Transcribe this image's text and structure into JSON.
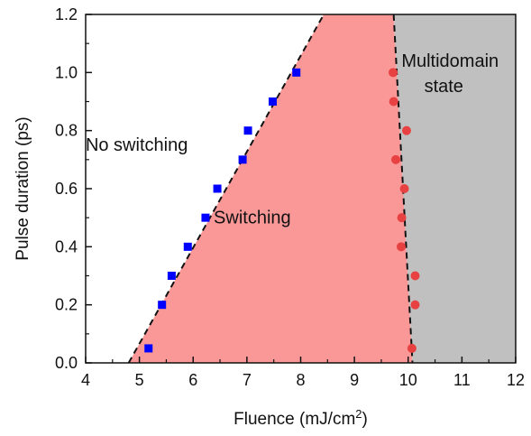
{
  "chart_data": {
    "type": "scatter",
    "title": "",
    "xlabel": "Fluence (mJ/cm",
    "xlabel_sup": "2",
    "xlabel_close": ")",
    "ylabel": "Pulse duration (ps)",
    "xlim": [
      4,
      12
    ],
    "ylim": [
      0,
      1.2
    ],
    "x_ticks": [
      4,
      5,
      6,
      7,
      8,
      9,
      10,
      11,
      12
    ],
    "y_ticks": [
      0.0,
      0.2,
      0.4,
      0.6,
      0.8,
      1.0,
      1.2
    ],
    "x_tick_labels": [
      "4",
      "5",
      "6",
      "7",
      "8",
      "9",
      "10",
      "11",
      "12"
    ],
    "y_tick_labels": [
      "0.0",
      "0.2",
      "0.4",
      "0.6",
      "0.8",
      "1.0",
      "1.2"
    ],
    "grid": false,
    "legend": "none",
    "regions": [
      {
        "label": "No switching",
        "color": "#ffffff",
        "label_at": {
          "x": 4.95,
          "y": 0.73
        }
      },
      {
        "label": "Switching",
        "color": "#fa9898",
        "label_at": {
          "x": 7.1,
          "y": 0.48
        }
      },
      {
        "label": "Multidomain",
        "label2": "state",
        "color": "#c0c0c0",
        "label_at": {
          "x": 10.78,
          "y": 1.02
        }
      }
    ],
    "boundaries": [
      {
        "name": "left",
        "style": "dashed",
        "color": "#111111",
        "points": [
          [
            4.8,
            0.0
          ],
          [
            8.43,
            1.2
          ]
        ]
      },
      {
        "name": "right",
        "style": "dashed",
        "color": "#111111",
        "points": [
          [
            9.73,
            1.2
          ],
          [
            10.08,
            0.0
          ]
        ]
      }
    ],
    "series": [
      {
        "marker": "square",
        "color": "#0000ff",
        "points": [
          [
            5.17,
            0.05
          ],
          [
            5.42,
            0.2
          ],
          [
            5.6,
            0.3
          ],
          [
            5.9,
            0.4
          ],
          [
            6.23,
            0.5
          ],
          [
            6.45,
            0.6
          ],
          [
            6.92,
            0.7
          ],
          [
            7.02,
            0.8
          ],
          [
            7.48,
            0.9
          ],
          [
            7.92,
            1.0
          ]
        ]
      },
      {
        "marker": "circle",
        "color": "#e84141",
        "points": [
          [
            9.72,
            1.0
          ],
          [
            9.73,
            0.9
          ],
          [
            9.97,
            0.8
          ],
          [
            9.77,
            0.7
          ],
          [
            9.93,
            0.6
          ],
          [
            9.88,
            0.5
          ],
          [
            9.87,
            0.4
          ],
          [
            10.13,
            0.3
          ],
          [
            10.13,
            0.2
          ],
          [
            10.07,
            0.05
          ]
        ]
      }
    ]
  }
}
